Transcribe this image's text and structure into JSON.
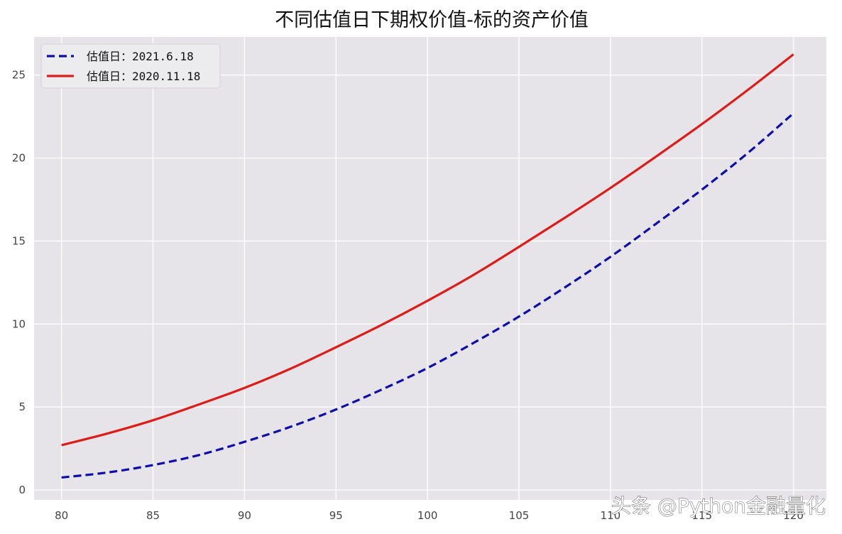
{
  "watermark": "头条 @Python金融量化",
  "chart_data": {
    "type": "line",
    "title": "不同估值日下期权价值-标的资产价值",
    "xlabel": "",
    "ylabel": "",
    "x": [
      80,
      82.5,
      85,
      87.5,
      90,
      92.5,
      95,
      97.5,
      100,
      102.5,
      105,
      107.5,
      110,
      112.5,
      115,
      117.5,
      120
    ],
    "xticks": [
      80,
      85,
      90,
      95,
      100,
      105,
      110,
      115,
      120
    ],
    "yticks": [
      0,
      5,
      10,
      15,
      20,
      25
    ],
    "xlim": [
      78.5,
      121.8
    ],
    "ylim": [
      -0.6,
      27.3
    ],
    "grid": true,
    "legend_position": "top-left",
    "colors": {
      "plot_background": "#e6e4e8",
      "grid": "#ffffff"
    },
    "series": [
      {
        "name": "估值日：2021.6.18",
        "color": "#0d0dab",
        "dash": "dashed",
        "values": [
          0.75,
          1.05,
          1.5,
          2.1,
          2.9,
          3.8,
          4.85,
          6.05,
          7.35,
          8.85,
          10.45,
          12.2,
          14.05,
          16.05,
          18.1,
          20.3,
          22.7
        ]
      },
      {
        "name": "估值日：2020.11.18",
        "color": "#dd1c18",
        "dash": "solid",
        "values": [
          2.7,
          3.4,
          4.2,
          5.15,
          6.15,
          7.3,
          8.6,
          9.95,
          11.4,
          12.95,
          14.65,
          16.4,
          18.2,
          20.1,
          22.05,
          24.1,
          26.25
        ]
      }
    ]
  }
}
